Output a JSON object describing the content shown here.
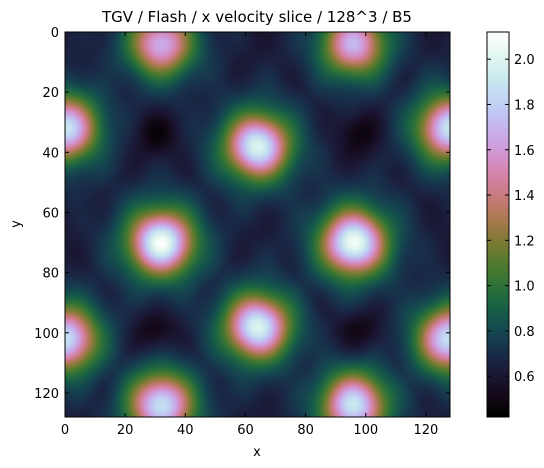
{
  "chart_data": {
    "type": "heatmap",
    "title": "TGV / Flash / x velocity slice / 128^3 / B5",
    "xlabel": "x",
    "ylabel": "y",
    "xlim": [
      0,
      128
    ],
    "ylim": [
      128,
      0
    ],
    "x_ticks": [
      0,
      20,
      40,
      60,
      80,
      100,
      120
    ],
    "y_ticks": [
      0,
      20,
      40,
      60,
      80,
      100,
      120
    ],
    "grid_size": [
      128,
      128
    ],
    "colormap": "cubehelix",
    "colorbar": {
      "min": 0.42,
      "max": 2.12,
      "ticks": [
        "0.6",
        "0.8",
        "1.0",
        "1.2",
        "1.4",
        "1.6",
        "1.8",
        "2.0"
      ],
      "tick_values": [
        0.6,
        0.8,
        1.0,
        1.2,
        1.4,
        1.6,
        1.8,
        2.0
      ]
    },
    "high_value_regions": [
      {
        "x": 32,
        "y": 70,
        "peak": 2.1
      },
      {
        "x": 96,
        "y": 70,
        "peak": 2.1
      },
      {
        "x": 64,
        "y": 38,
        "peak": 2.0
      },
      {
        "x": 64,
        "y": 98,
        "peak": 2.0
      },
      {
        "x": 32,
        "y": 4,
        "peak": 1.7
      },
      {
        "x": 96,
        "y": 4,
        "peak": 1.7
      },
      {
        "x": 32,
        "y": 124,
        "peak": 1.9
      },
      {
        "x": 96,
        "y": 124,
        "peak": 1.9
      },
      {
        "x": 0,
        "y": 32,
        "peak": 1.9
      },
      {
        "x": 128,
        "y": 32,
        "peak": 1.9
      },
      {
        "x": 0,
        "y": 102,
        "peak": 1.9
      },
      {
        "x": 128,
        "y": 102,
        "peak": 1.9
      }
    ],
    "low_value_regions": [
      {
        "x": 30,
        "y": 34,
        "value": 0.45
      },
      {
        "x": 98,
        "y": 34,
        "value": 0.45
      },
      {
        "x": 30,
        "y": 100,
        "value": 0.45
      },
      {
        "x": 98,
        "y": 100,
        "value": 0.45
      }
    ]
  }
}
